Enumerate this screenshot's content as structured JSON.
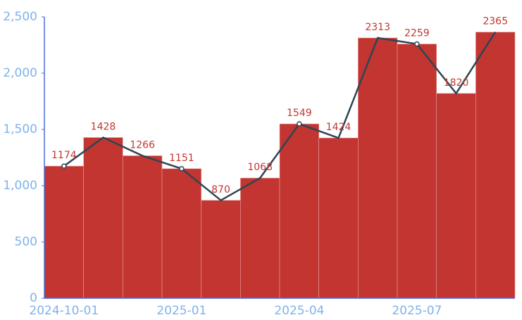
{
  "chart_data": {
    "type": "bar",
    "categories": [
      "2024-10-01",
      null,
      null,
      "2025-01",
      null,
      null,
      "2025-04",
      null,
      null,
      "2025-07",
      null,
      null
    ],
    "series": [
      {
        "type": "bar",
        "color": "#c23531",
        "values": [
          1174,
          1428,
          1266,
          1151,
          870,
          1068,
          1549,
          1424,
          2313,
          2259,
          1820,
          2365
        ]
      },
      {
        "type": "line",
        "color": "#2f4554",
        "values": [
          1174,
          1428,
          1266,
          1151,
          870,
          1068,
          1549,
          1424,
          2313,
          2259,
          1820,
          2365
        ]
      }
    ],
    "ylim": [
      0,
      2500
    ],
    "yticks": [
      0,
      500,
      {
        "value": 1000,
        "label": "1,000"
      },
      {
        "value": 1500,
        "label": "1,500"
      },
      {
        "value": 2000,
        "label": "2,000"
      },
      {
        "value": 2500,
        "label": "2,500"
      }
    ],
    "grid": false
  }
}
